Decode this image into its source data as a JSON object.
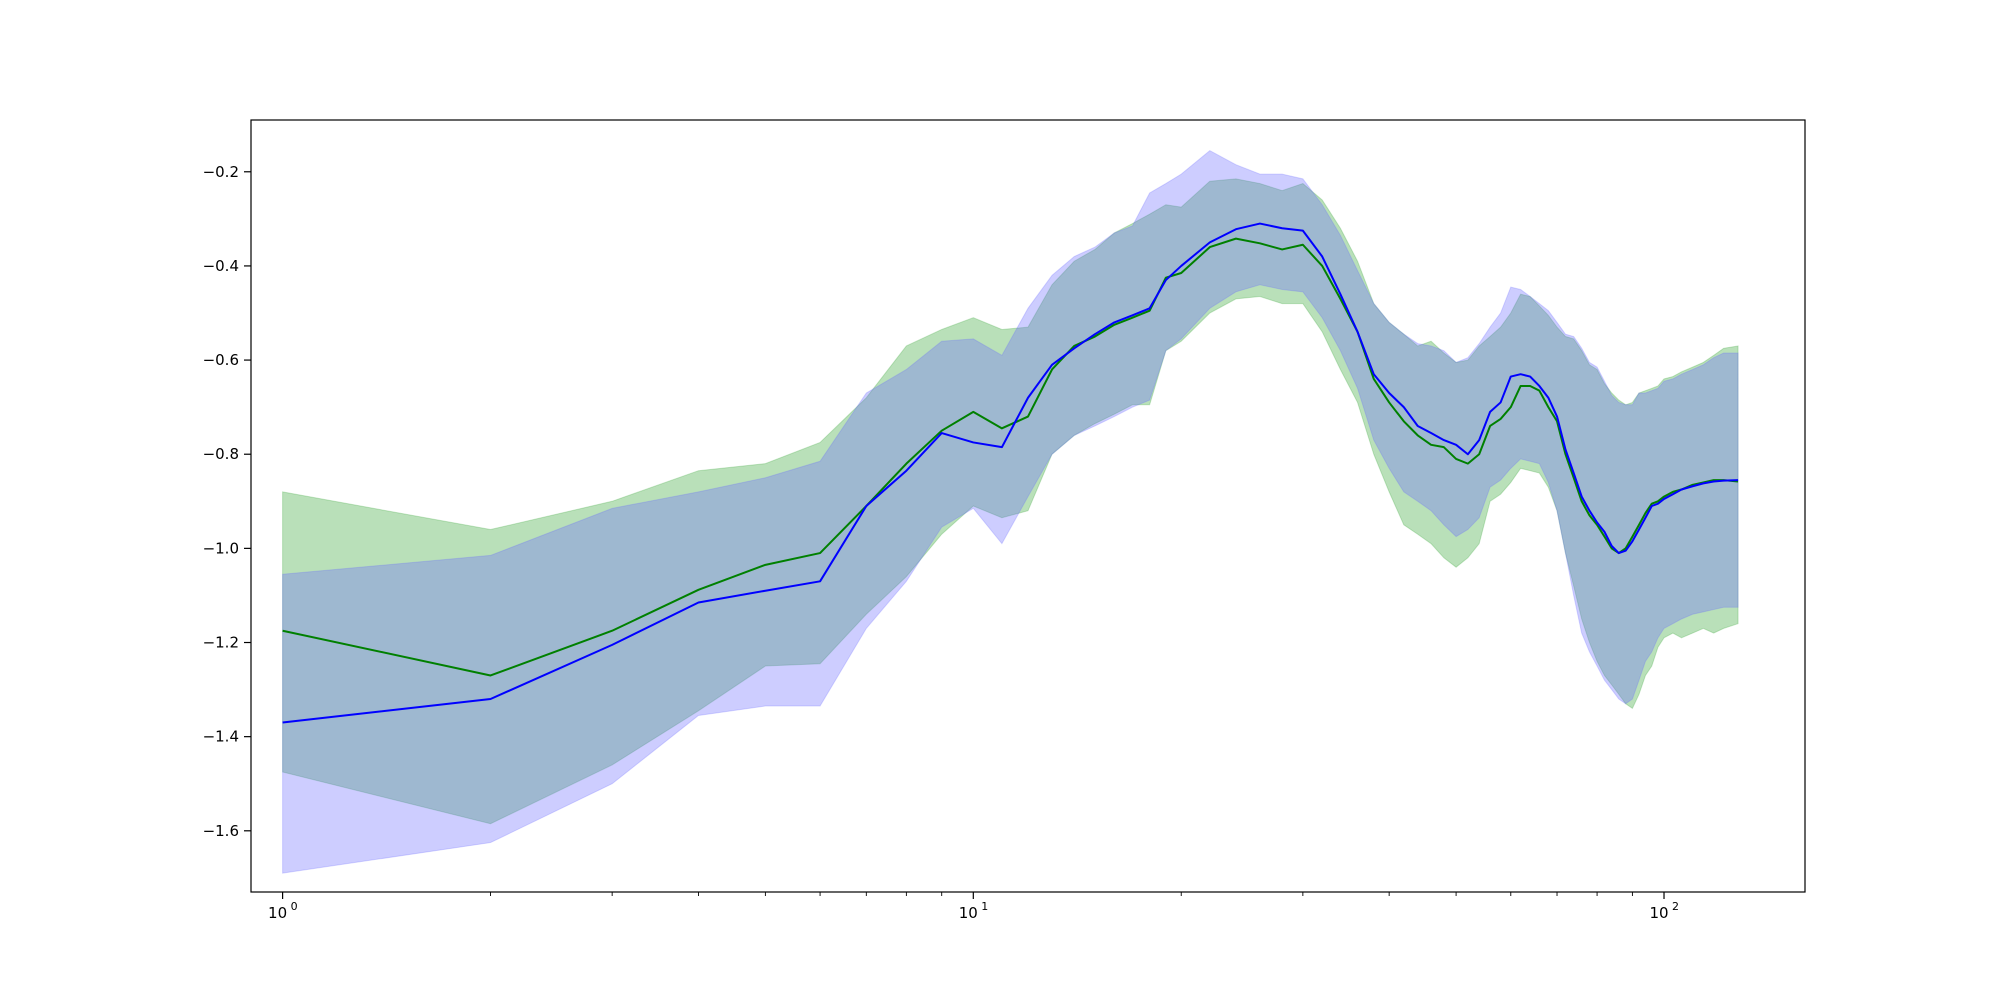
{
  "chart_data": {
    "type": "line",
    "title": "",
    "xlabel": "",
    "ylabel": "",
    "xscale": "log",
    "xlim": [
      0.9,
      160
    ],
    "ylim": [
      -1.73,
      -0.09
    ],
    "grid": false,
    "legend": "none",
    "x_ticks": [
      {
        "value": 1,
        "label": "10",
        "exp": "0"
      },
      {
        "value": 10,
        "label": "10",
        "exp": "1"
      },
      {
        "value": 100,
        "label": "10",
        "exp": "2"
      }
    ],
    "y_ticks": [
      {
        "value": -0.2,
        "label": "−0.2"
      },
      {
        "value": -0.4,
        "label": "−0.4"
      },
      {
        "value": -0.6,
        "label": "−0.6"
      },
      {
        "value": -0.8,
        "label": "−0.8"
      },
      {
        "value": -1.0,
        "label": "−1.0"
      },
      {
        "value": -1.2,
        "label": "−1.2"
      },
      {
        "value": -1.4,
        "label": "−1.4"
      },
      {
        "value": -1.6,
        "label": "−1.6"
      }
    ],
    "x": [
      1,
      2,
      3,
      4,
      5,
      6,
      7,
      8,
      9,
      10,
      11,
      12,
      13,
      14,
      15,
      16,
      17,
      18,
      19,
      20,
      22,
      24,
      26,
      28,
      30,
      32,
      34,
      36,
      38,
      40,
      42,
      44,
      46,
      48,
      50,
      52,
      54,
      56,
      58,
      60,
      62,
      64,
      66,
      68,
      70,
      72,
      74,
      76,
      78,
      80,
      82,
      84,
      86,
      88,
      90,
      92,
      94,
      96,
      98,
      100,
      103,
      106,
      110,
      114,
      118,
      122,
      128
    ],
    "series": [
      {
        "color": "#008000",
        "band_color": "#2ca02c",
        "mean": [
          -1.175,
          -1.27,
          -1.175,
          -1.088,
          -1.035,
          -1.01,
          -0.91,
          -0.82,
          -0.75,
          -0.71,
          -0.745,
          -0.72,
          -0.62,
          -0.57,
          -0.55,
          -0.525,
          -0.51,
          -0.495,
          -0.425,
          -0.415,
          -0.36,
          -0.342,
          -0.352,
          -0.365,
          -0.355,
          -0.4,
          -0.47,
          -0.54,
          -0.64,
          -0.69,
          -0.73,
          -0.76,
          -0.78,
          -0.785,
          -0.81,
          -0.82,
          -0.8,
          -0.74,
          -0.725,
          -0.7,
          -0.655,
          -0.655,
          -0.665,
          -0.7,
          -0.73,
          -0.8,
          -0.85,
          -0.9,
          -0.93,
          -0.95,
          -0.975,
          -1.0,
          -1.01,
          -1.0,
          -0.975,
          -0.95,
          -0.925,
          -0.905,
          -0.9,
          -0.89,
          -0.88,
          -0.875,
          -0.865,
          -0.86,
          -0.855,
          -0.855,
          -0.858
        ],
        "upper": [
          -0.88,
          -0.96,
          -0.9,
          -0.835,
          -0.82,
          -0.775,
          -0.68,
          -0.57,
          -0.535,
          -0.51,
          -0.535,
          -0.53,
          -0.44,
          -0.39,
          -0.365,
          -0.33,
          -0.31,
          -0.29,
          -0.27,
          -0.275,
          -0.22,
          -0.215,
          -0.225,
          -0.24,
          -0.225,
          -0.26,
          -0.32,
          -0.39,
          -0.48,
          -0.52,
          -0.545,
          -0.57,
          -0.56,
          -0.585,
          -0.605,
          -0.6,
          -0.57,
          -0.55,
          -0.53,
          -0.5,
          -0.46,
          -0.465,
          -0.485,
          -0.505,
          -0.53,
          -0.55,
          -0.555,
          -0.58,
          -0.61,
          -0.62,
          -0.65,
          -0.67,
          -0.685,
          -0.695,
          -0.69,
          -0.67,
          -0.665,
          -0.66,
          -0.655,
          -0.64,
          -0.635,
          -0.625,
          -0.615,
          -0.605,
          -0.59,
          -0.575,
          -0.57
        ],
        "lower": [
          -1.475,
          -1.585,
          -1.46,
          -1.345,
          -1.25,
          -1.245,
          -1.14,
          -1.06,
          -0.97,
          -0.91,
          -0.935,
          -0.92,
          -0.8,
          -0.76,
          -0.735,
          -0.715,
          -0.695,
          -0.695,
          -0.58,
          -0.56,
          -0.5,
          -0.47,
          -0.465,
          -0.48,
          -0.48,
          -0.54,
          -0.62,
          -0.69,
          -0.8,
          -0.88,
          -0.95,
          -0.97,
          -0.99,
          -1.02,
          -1.04,
          -1.02,
          -0.99,
          -0.9,
          -0.885,
          -0.86,
          -0.83,
          -0.835,
          -0.84,
          -0.87,
          -0.92,
          -1.01,
          -1.08,
          -1.15,
          -1.2,
          -1.24,
          -1.27,
          -1.29,
          -1.31,
          -1.33,
          -1.34,
          -1.31,
          -1.27,
          -1.25,
          -1.21,
          -1.19,
          -1.18,
          -1.19,
          -1.18,
          -1.17,
          -1.18,
          -1.17,
          -1.16
        ]
      },
      {
        "color": "#0000ff",
        "band_color": "#6666ff",
        "mean": [
          -1.37,
          -1.32,
          -1.205,
          -1.115,
          -1.09,
          -1.07,
          -0.91,
          -0.835,
          -0.755,
          -0.775,
          -0.785,
          -0.68,
          -0.61,
          -0.575,
          -0.545,
          -0.52,
          -0.505,
          -0.49,
          -0.43,
          -0.4,
          -0.35,
          -0.322,
          -0.31,
          -0.32,
          -0.325,
          -0.38,
          -0.46,
          -0.54,
          -0.63,
          -0.67,
          -0.7,
          -0.74,
          -0.755,
          -0.77,
          -0.78,
          -0.8,
          -0.77,
          -0.71,
          -0.69,
          -0.635,
          -0.63,
          -0.635,
          -0.655,
          -0.68,
          -0.72,
          -0.79,
          -0.84,
          -0.89,
          -0.92,
          -0.945,
          -0.965,
          -0.995,
          -1.01,
          -1.005,
          -0.985,
          -0.96,
          -0.935,
          -0.91,
          -0.905,
          -0.895,
          -0.885,
          -0.875,
          -0.868,
          -0.862,
          -0.858,
          -0.856,
          -0.855
        ],
        "upper": [
          -1.055,
          -1.015,
          -0.915,
          -0.88,
          -0.85,
          -0.815,
          -0.67,
          -0.62,
          -0.56,
          -0.555,
          -0.59,
          -0.49,
          -0.42,
          -0.38,
          -0.36,
          -0.33,
          -0.315,
          -0.245,
          -0.225,
          -0.205,
          -0.155,
          -0.185,
          -0.205,
          -0.205,
          -0.215,
          -0.27,
          -0.335,
          -0.41,
          -0.48,
          -0.52,
          -0.545,
          -0.565,
          -0.57,
          -0.58,
          -0.605,
          -0.595,
          -0.565,
          -0.53,
          -0.5,
          -0.445,
          -0.45,
          -0.465,
          -0.48,
          -0.495,
          -0.52,
          -0.545,
          -0.55,
          -0.575,
          -0.605,
          -0.615,
          -0.645,
          -0.675,
          -0.69,
          -0.695,
          -0.695,
          -0.67,
          -0.67,
          -0.665,
          -0.66,
          -0.645,
          -0.64,
          -0.63,
          -0.62,
          -0.61,
          -0.595,
          -0.585,
          -0.585
        ],
        "lower": [
          -1.69,
          -1.625,
          -1.5,
          -1.355,
          -1.335,
          -1.335,
          -1.17,
          -1.07,
          -0.955,
          -0.915,
          -0.99,
          -0.89,
          -0.8,
          -0.76,
          -0.74,
          -0.72,
          -0.7,
          -0.685,
          -0.58,
          -0.555,
          -0.49,
          -0.455,
          -0.44,
          -0.45,
          -0.455,
          -0.51,
          -0.58,
          -0.66,
          -0.77,
          -0.83,
          -0.88,
          -0.9,
          -0.92,
          -0.95,
          -0.975,
          -0.96,
          -0.935,
          -0.87,
          -0.855,
          -0.83,
          -0.81,
          -0.815,
          -0.82,
          -0.86,
          -0.92,
          -1.01,
          -1.1,
          -1.18,
          -1.22,
          -1.25,
          -1.28,
          -1.3,
          -1.32,
          -1.33,
          -1.32,
          -1.28,
          -1.24,
          -1.22,
          -1.19,
          -1.17,
          -1.16,
          -1.15,
          -1.14,
          -1.135,
          -1.13,
          -1.125,
          -1.125
        ]
      }
    ]
  }
}
